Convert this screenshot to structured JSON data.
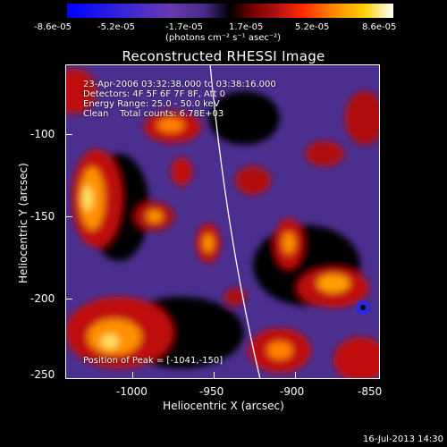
{
  "colorbar": {
    "ticks": [
      "-8.6e-05",
      "-5.2e-05",
      "-1.7e-05",
      "1.7e-05",
      "5.2e-05",
      "8.6e-05"
    ],
    "units": "(photons cm⁻² s⁻¹ asec⁻²)"
  },
  "title": "Reconstructed RHESSI Image",
  "annotations": {
    "time_range": "23-Apr-2006 03:32:38.000 to 03:38:16.000",
    "detectors": "Detectors: 4F 5F 6F 7F 8F, Att 0",
    "energy": "Energy Range: 25.0 - 50.0 keV",
    "method": "Clean    Total counts: 6.78E+03",
    "peak": "Position of Peak = [-1041,-150]"
  },
  "axes": {
    "ylabel": "Heliocentric Y (arcsec)",
    "xlabel": "Heliocentric X (arcsec)",
    "yticks": [
      "-100",
      "-150",
      "-200",
      "-250"
    ],
    "xticks": [
      "-1000",
      "-950",
      "-900",
      "-850"
    ]
  },
  "timestamp": "16-Jul-2013 14:30",
  "colors": {
    "background": "#000000",
    "negative": "#4b2f8f",
    "positive_mid": "#c01010",
    "positive_high": "#ffa000",
    "limb": "#ffffff"
  }
}
